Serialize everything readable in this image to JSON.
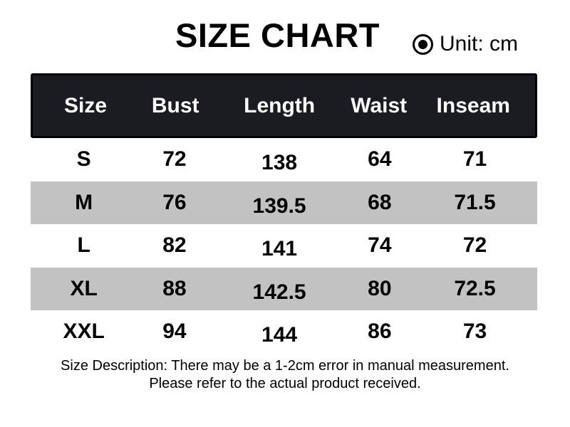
{
  "unit_label": "Unit: cm",
  "chart_data": {
    "type": "table",
    "title": "SIZE CHART",
    "unit": "cm",
    "columns": [
      "Size",
      "Bust",
      "Length",
      "Waist",
      "Inseam"
    ],
    "rows": [
      [
        "S",
        "72",
        "138",
        "64",
        "71"
      ],
      [
        "M",
        "76",
        "139.5",
        "68",
        "71.5"
      ],
      [
        "L",
        "82",
        "141",
        "74",
        "72"
      ],
      [
        "XL",
        "88",
        "142.5",
        "80",
        "72.5"
      ],
      [
        "XXL",
        "94",
        "144",
        "86",
        "73"
      ]
    ],
    "notes": [
      "Size Description: There may be a 1-2cm error in manual measurement.",
      "Please refer to the actual product received."
    ],
    "layout": {
      "alternating_rows": "white / gray starting at row S (white)",
      "header_style": "black filled bar with white bold labels"
    }
  },
  "footer": {
    "line1": "Size Description: There may be a 1-2cm error in manual measurement.",
    "line2": "Please refer to the actual product received."
  },
  "colors": {
    "header_bg": "#1b1b22",
    "header_border": "#000000",
    "header_text": "#ffffff",
    "alt_row_bg": "#c2c2c2",
    "text": "#000000",
    "page_bg": "#ffffff"
  }
}
